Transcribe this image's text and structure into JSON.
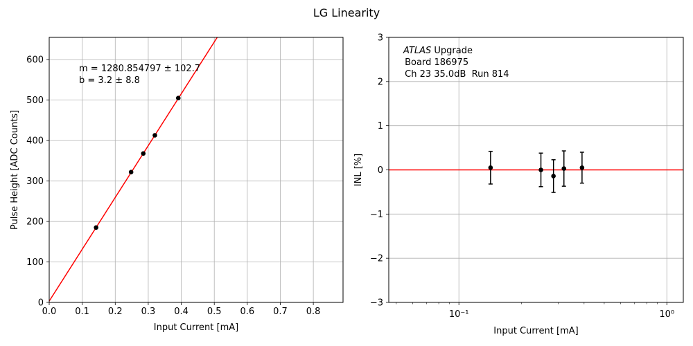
{
  "figure_title": "LG Linearity",
  "chart_data": [
    {
      "type": "scatter",
      "title": "",
      "xlabel": "Input Current [mA]",
      "ylabel": "Pulse Height [ADC Counts]",
      "xlim": [
        0.0,
        0.89
      ],
      "ylim": [
        0,
        655
      ],
      "xscale": "linear",
      "xticks": [
        0.0,
        0.1,
        0.2,
        0.3,
        0.4,
        0.5,
        0.6,
        0.7,
        0.8
      ],
      "xtick_labels": [
        "0.0",
        "0.1",
        "0.2",
        "0.3",
        "0.4",
        "0.5",
        "0.6",
        "0.7",
        "0.8"
      ],
      "yticks": [
        0,
        100,
        200,
        300,
        400,
        500,
        600
      ],
      "ytick_labels": [
        "0",
        "100",
        "200",
        "300",
        "400",
        "500",
        "600"
      ],
      "grid": true,
      "series": [
        {
          "kind": "points",
          "color": "#000000",
          "x": [
            0.142,
            0.248,
            0.285,
            0.32,
            0.391
          ],
          "y": [
            185,
            322,
            368,
            413,
            505
          ]
        },
        {
          "kind": "fit-line",
          "color": "#ff0000",
          "slope": 1280.854797,
          "intercept": 3.2
        }
      ],
      "annotations": [
        "m = 1280.854797 ± 102.7",
        "b = 3.2 ± 8.8"
      ]
    },
    {
      "type": "scatter",
      "title": "",
      "xlabel": "Input Current [mA]",
      "ylabel": "INL [%]",
      "xscale": "log",
      "xlim": [
        0.046,
        1.2
      ],
      "ylim": [
        -3,
        3
      ],
      "xticks": [
        0.1,
        1.0
      ],
      "xtick_labels": [
        "10⁻¹",
        "10⁰"
      ],
      "yticks": [
        -3,
        -2,
        -1,
        0,
        1,
        2,
        3
      ],
      "ytick_labels": [
        "−3",
        "−2",
        "−1",
        "0",
        "1",
        "2",
        "3"
      ],
      "grid": true,
      "series": [
        {
          "kind": "points-with-errorbars",
          "color": "#000000",
          "x": [
            0.142,
            0.248,
            0.285,
            0.32,
            0.391
          ],
          "y": [
            0.05,
            0.0,
            -0.14,
            0.03,
            0.05
          ],
          "yerr": [
            0.37,
            0.38,
            0.37,
            0.4,
            0.35
          ]
        },
        {
          "kind": "hline",
          "color": "#ff0000",
          "y": 0
        }
      ],
      "annotations": [
        "ATLAS",
        " Upgrade",
        " Board 186975",
        " Ch 23 35.0dB  Run 814"
      ]
    }
  ]
}
